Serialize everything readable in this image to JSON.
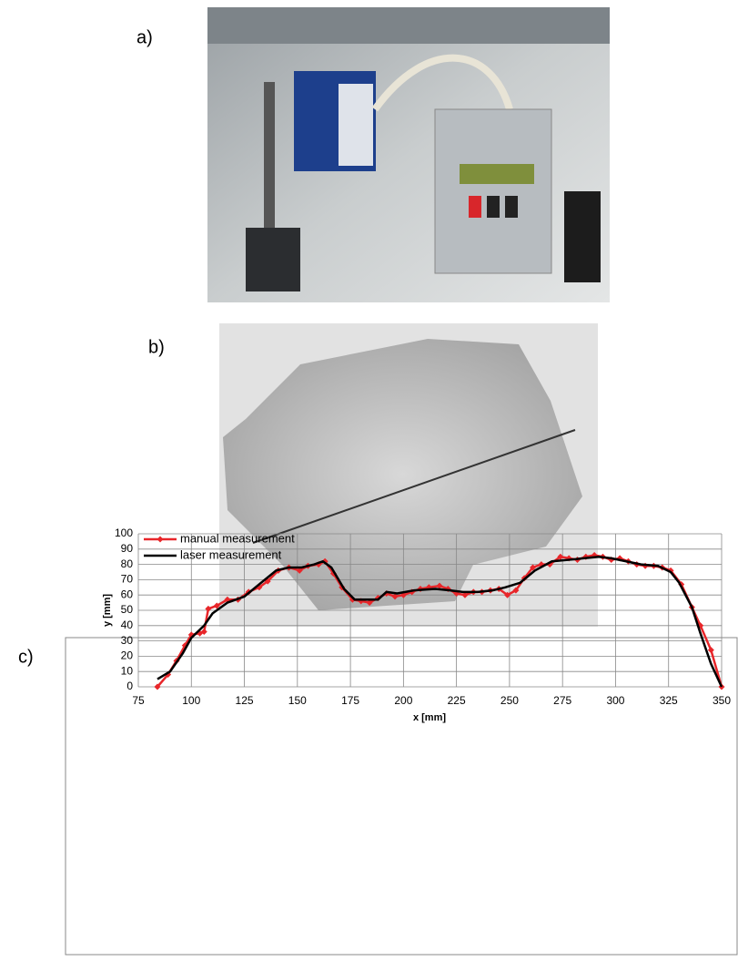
{
  "panel_labels": [
    "a)",
    "b)",
    "c)"
  ],
  "chart_data": {
    "type": "line",
    "xlabel": "x [mm]",
    "ylabel": "y [mm]",
    "xlim": [
      75,
      350
    ],
    "xticks": [
      75,
      100,
      125,
      150,
      175,
      200,
      225,
      250,
      275,
      300,
      325,
      350
    ],
    "ylim": [
      0,
      100
    ],
    "yticks": [
      0,
      10,
      20,
      30,
      40,
      50,
      60,
      70,
      80,
      90,
      100
    ],
    "grid": true,
    "legend": "upper left",
    "series": [
      {
        "name": "manual measurement",
        "color": "#e8262a",
        "marker": "diamond",
        "x": [
          84,
          89,
          93,
          97,
          100,
          104,
          106,
          108,
          112,
          117,
          122,
          127,
          132,
          136,
          141,
          146,
          151,
          155,
          160,
          163,
          167,
          171,
          176,
          180,
          184,
          188,
          192,
          196,
          200,
          204,
          208,
          212,
          217,
          221,
          225,
          229,
          233,
          237,
          241,
          245,
          249,
          253,
          257,
          261,
          265,
          269,
          274,
          278,
          282,
          286,
          290,
          294,
          298,
          302,
          306,
          310,
          314,
          318,
          322,
          326,
          331,
          336,
          340,
          345,
          350
        ],
        "values": [
          0,
          8,
          17,
          27,
          34,
          35,
          36,
          51,
          53,
          57,
          57,
          62,
          65,
          69,
          76,
          78,
          76,
          79,
          80,
          82,
          74,
          65,
          57,
          56,
          55,
          58,
          61,
          59,
          60,
          62,
          64,
          65,
          66,
          64,
          61,
          60,
          62,
          62,
          63,
          64,
          60,
          63,
          71,
          78,
          80,
          80,
          85,
          84,
          83,
          85,
          86,
          85,
          83,
          84,
          82,
          80,
          79,
          79,
          78,
          76,
          67,
          52,
          40,
          24,
          0
        ]
      },
      {
        "name": "laser measurement",
        "color": "#000000",
        "marker": "none",
        "x": [
          84,
          90,
          96,
          100,
          106,
          110,
          117,
          125,
          132,
          140,
          146,
          152,
          158,
          162,
          166,
          172,
          177,
          183,
          188,
          192,
          197,
          205,
          215,
          222,
          228,
          235,
          242,
          248,
          255,
          262,
          270,
          278,
          285,
          292,
          298,
          305,
          312,
          320,
          326,
          330,
          336,
          340,
          345,
          350
        ],
        "values": [
          5,
          10,
          22,
          32,
          40,
          48,
          55,
          59,
          67,
          76,
          78,
          78,
          80,
          82,
          78,
          64,
          57,
          57,
          57,
          62,
          61,
          63,
          64,
          63,
          62,
          62,
          63,
          65,
          68,
          76,
          82,
          83,
          84,
          85,
          84,
          82,
          80,
          79,
          75,
          68,
          52,
          35,
          15,
          0
        ]
      }
    ]
  }
}
